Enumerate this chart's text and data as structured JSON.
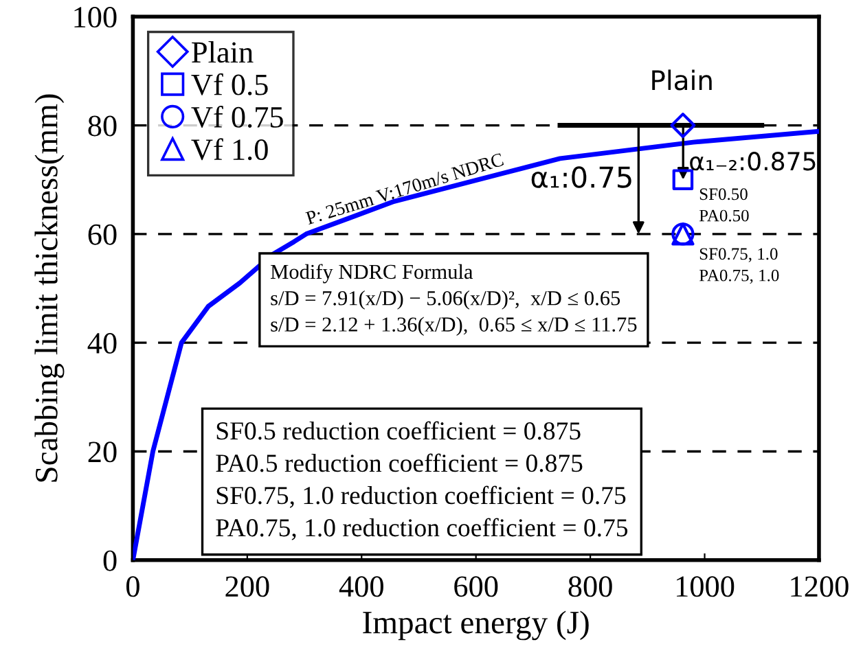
{
  "chart_data": {
    "type": "line",
    "xlabel": "Impact energy (J)",
    "ylabel": "Scabbing limit thickness(mm)",
    "xlim": [
      0,
      1200
    ],
    "ylim": [
      0,
      100
    ],
    "xticks": [
      0,
      200,
      400,
      600,
      800,
      1000,
      1200
    ],
    "yticks": [
      0,
      20,
      40,
      60,
      80,
      100
    ],
    "grid": "y",
    "legend": "top left",
    "series": [
      {
        "color": "#0000ff",
        "x": [
          0,
          35,
          85,
          132,
          187,
          245,
          282,
          303,
          457,
          747,
          980,
          1200
        ],
        "values": [
          0,
          20,
          40,
          46.7,
          51,
          56.3,
          58.6,
          60,
          66,
          73.9,
          76.9,
          78.9
        ]
      },
      {
        "color": "#000000",
        "x": [
          747,
          1100
        ],
        "values": [
          80,
          80
        ]
      },
      {
        "type": "scatter",
        "name": "Plain",
        "marker": "diamond",
        "color": "#0000ff",
        "x": [
          962
        ],
        "values": [
          80
        ]
      },
      {
        "type": "scatter",
        "name": "Vf 0.5",
        "marker": "square",
        "color": "#0000ff",
        "x": [
          962
        ],
        "values": [
          70
        ]
      },
      {
        "type": "scatter",
        "name": "Vf 0.75",
        "marker": "circle",
        "color": "#0000ff",
        "x": [
          962
        ],
        "values": [
          60
        ]
      },
      {
        "type": "scatter",
        "name": "Vf 1.0",
        "marker": "triangle",
        "color": "#0000ff",
        "x": [
          962
        ],
        "values": [
          60
        ]
      }
    ],
    "annotations": [
      "Plain",
      "α₁₋₂:0.875",
      "α₁:0.75",
      "SF0.50\nPA0.50",
      "SF0.75, 1.0\nPA0.75, 1.0",
      "P: 25mm V:170m/s NDRC",
      "Modify NDRC Formula\ns/D = 7.91(x/D) − 5.06(x/D)²,  x/D ≤ 0.65\ns/D = 2.12 + 1.36(x/D),  0.65 ≤ x/D ≤ 11.75",
      "SF0.5 reduction coefficient = 0.875\nPA0.5 reduction coefficient = 0.875\nSF0.75, 1.0 reduction coefficient = 0.75\nPA0.75, 1.0 reduction coefficient = 0.75"
    ]
  }
}
